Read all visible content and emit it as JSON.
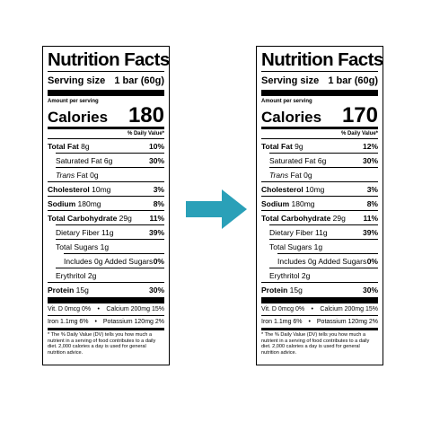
{
  "labels": [
    {
      "title": "Nutrition Facts",
      "serving_label": "Serving size",
      "serving_value": "1 bar (60g)",
      "amount_per_serving": "Amount per serving",
      "calories_label": "Calories",
      "calories_value": "180",
      "dv_header": "% Daily Value*",
      "total_fat": {
        "name": "Total Fat",
        "amount": "8g",
        "dv": "10%"
      },
      "saturated_fat": {
        "name": "Saturated Fat",
        "amount": "6g",
        "dv": "30%"
      },
      "trans_fat": {
        "name": "Trans",
        "amount": "Fat 0g"
      },
      "cholesterol": {
        "name": "Cholesterol",
        "amount": "10mg",
        "dv": "3%"
      },
      "sodium": {
        "name": "Sodium",
        "amount": "180mg",
        "dv": "8%"
      },
      "total_carb": {
        "name": "Total Carbohydrate",
        "amount": "29g",
        "dv": "11%"
      },
      "fiber": {
        "name": "Dietary Fiber",
        "amount": "11g",
        "dv": "39%"
      },
      "sugars": {
        "name": "Total Sugars",
        "amount": "1g"
      },
      "added_sugars": {
        "name": "Includes 0g Added Sugars",
        "dv": "0%"
      },
      "erythritol": {
        "name": "Erythritol",
        "amount": "2g"
      },
      "protein": {
        "name": "Protein",
        "amount": "15g",
        "dv": "30%"
      },
      "vit_d": "Vit. D 0mcg 0%",
      "calcium": "Calcium 200mg 15%",
      "iron": "Iron 1.1mg 6%",
      "potassium": "Potassium 120mg 2%",
      "bullet": "•",
      "footnote": "* The % Daily Value (DV) tells you how much a nutrient in a serving of food contributes to a daily diet. 2,000 calories a day is used for general nutrition advice."
    },
    {
      "title": "Nutrition Facts",
      "serving_label": "Serving size",
      "serving_value": "1 bar (60g)",
      "amount_per_serving": "Amount per serving",
      "calories_label": "Calories",
      "calories_value": "170",
      "dv_header": "% Daily Value*",
      "total_fat": {
        "name": "Total Fat",
        "amount": "9g",
        "dv": "12%"
      },
      "saturated_fat": {
        "name": "Saturated Fat",
        "amount": "6g",
        "dv": "30%"
      },
      "trans_fat": {
        "name": "Trans",
        "amount": "Fat 0g"
      },
      "cholesterol": {
        "name": "Cholesterol",
        "amount": "10mg",
        "dv": "3%"
      },
      "sodium": {
        "name": "Sodium",
        "amount": "180mg",
        "dv": "8%"
      },
      "total_carb": {
        "name": "Total Carbohydrate",
        "amount": "29g",
        "dv": "11%"
      },
      "fiber": {
        "name": "Dietary Fiber",
        "amount": "11g",
        "dv": "39%"
      },
      "sugars": {
        "name": "Total Sugars",
        "amount": "1g"
      },
      "added_sugars": {
        "name": "Includes 0g Added Sugars",
        "dv": "0%"
      },
      "erythritol": {
        "name": "Erythritol",
        "amount": "2g"
      },
      "protein": {
        "name": "Protein",
        "amount": "15g",
        "dv": "30%"
      },
      "vit_d": "Vit. D 0mcg 0%",
      "calcium": "Calcium 200mg 15%",
      "iron": "Iron 1.1mg 6%",
      "potassium": "Potassium 120mg 2%",
      "bullet": "•",
      "footnote": "* The % Daily Value (DV) tells you how much a nutrient in a serving of food contributes to a daily diet. 2,000 calories a day is used for general nutrition advice."
    }
  ],
  "arrow": {
    "icon": "right-arrow-icon",
    "color": "#2aa0b8"
  }
}
